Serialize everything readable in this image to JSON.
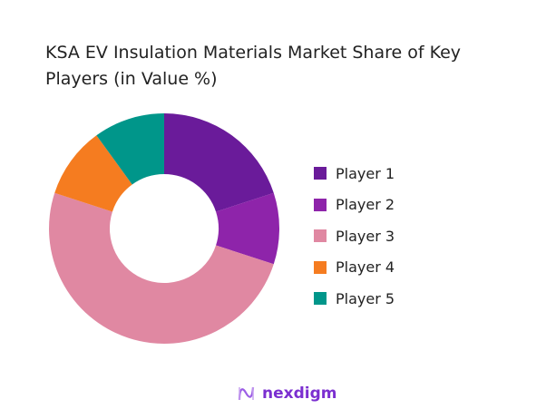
{
  "chart_data": {
    "type": "pie",
    "donut": true,
    "title": "KSA EV Insulation Materials Market Share of Key Players (in Value %)",
    "categories": [
      "Player 1",
      "Player 2",
      "Player 3",
      "Player 4",
      "Player 5"
    ],
    "values": [
      20,
      10,
      50,
      10,
      10
    ],
    "colors": [
      "#6A1B9A",
      "#8E24AA",
      "#E088A2",
      "#F57C20",
      "#00968A"
    ],
    "legend_position": "right"
  },
  "brand": {
    "name": "nexdigm",
    "color": "#7B2FD0"
  }
}
